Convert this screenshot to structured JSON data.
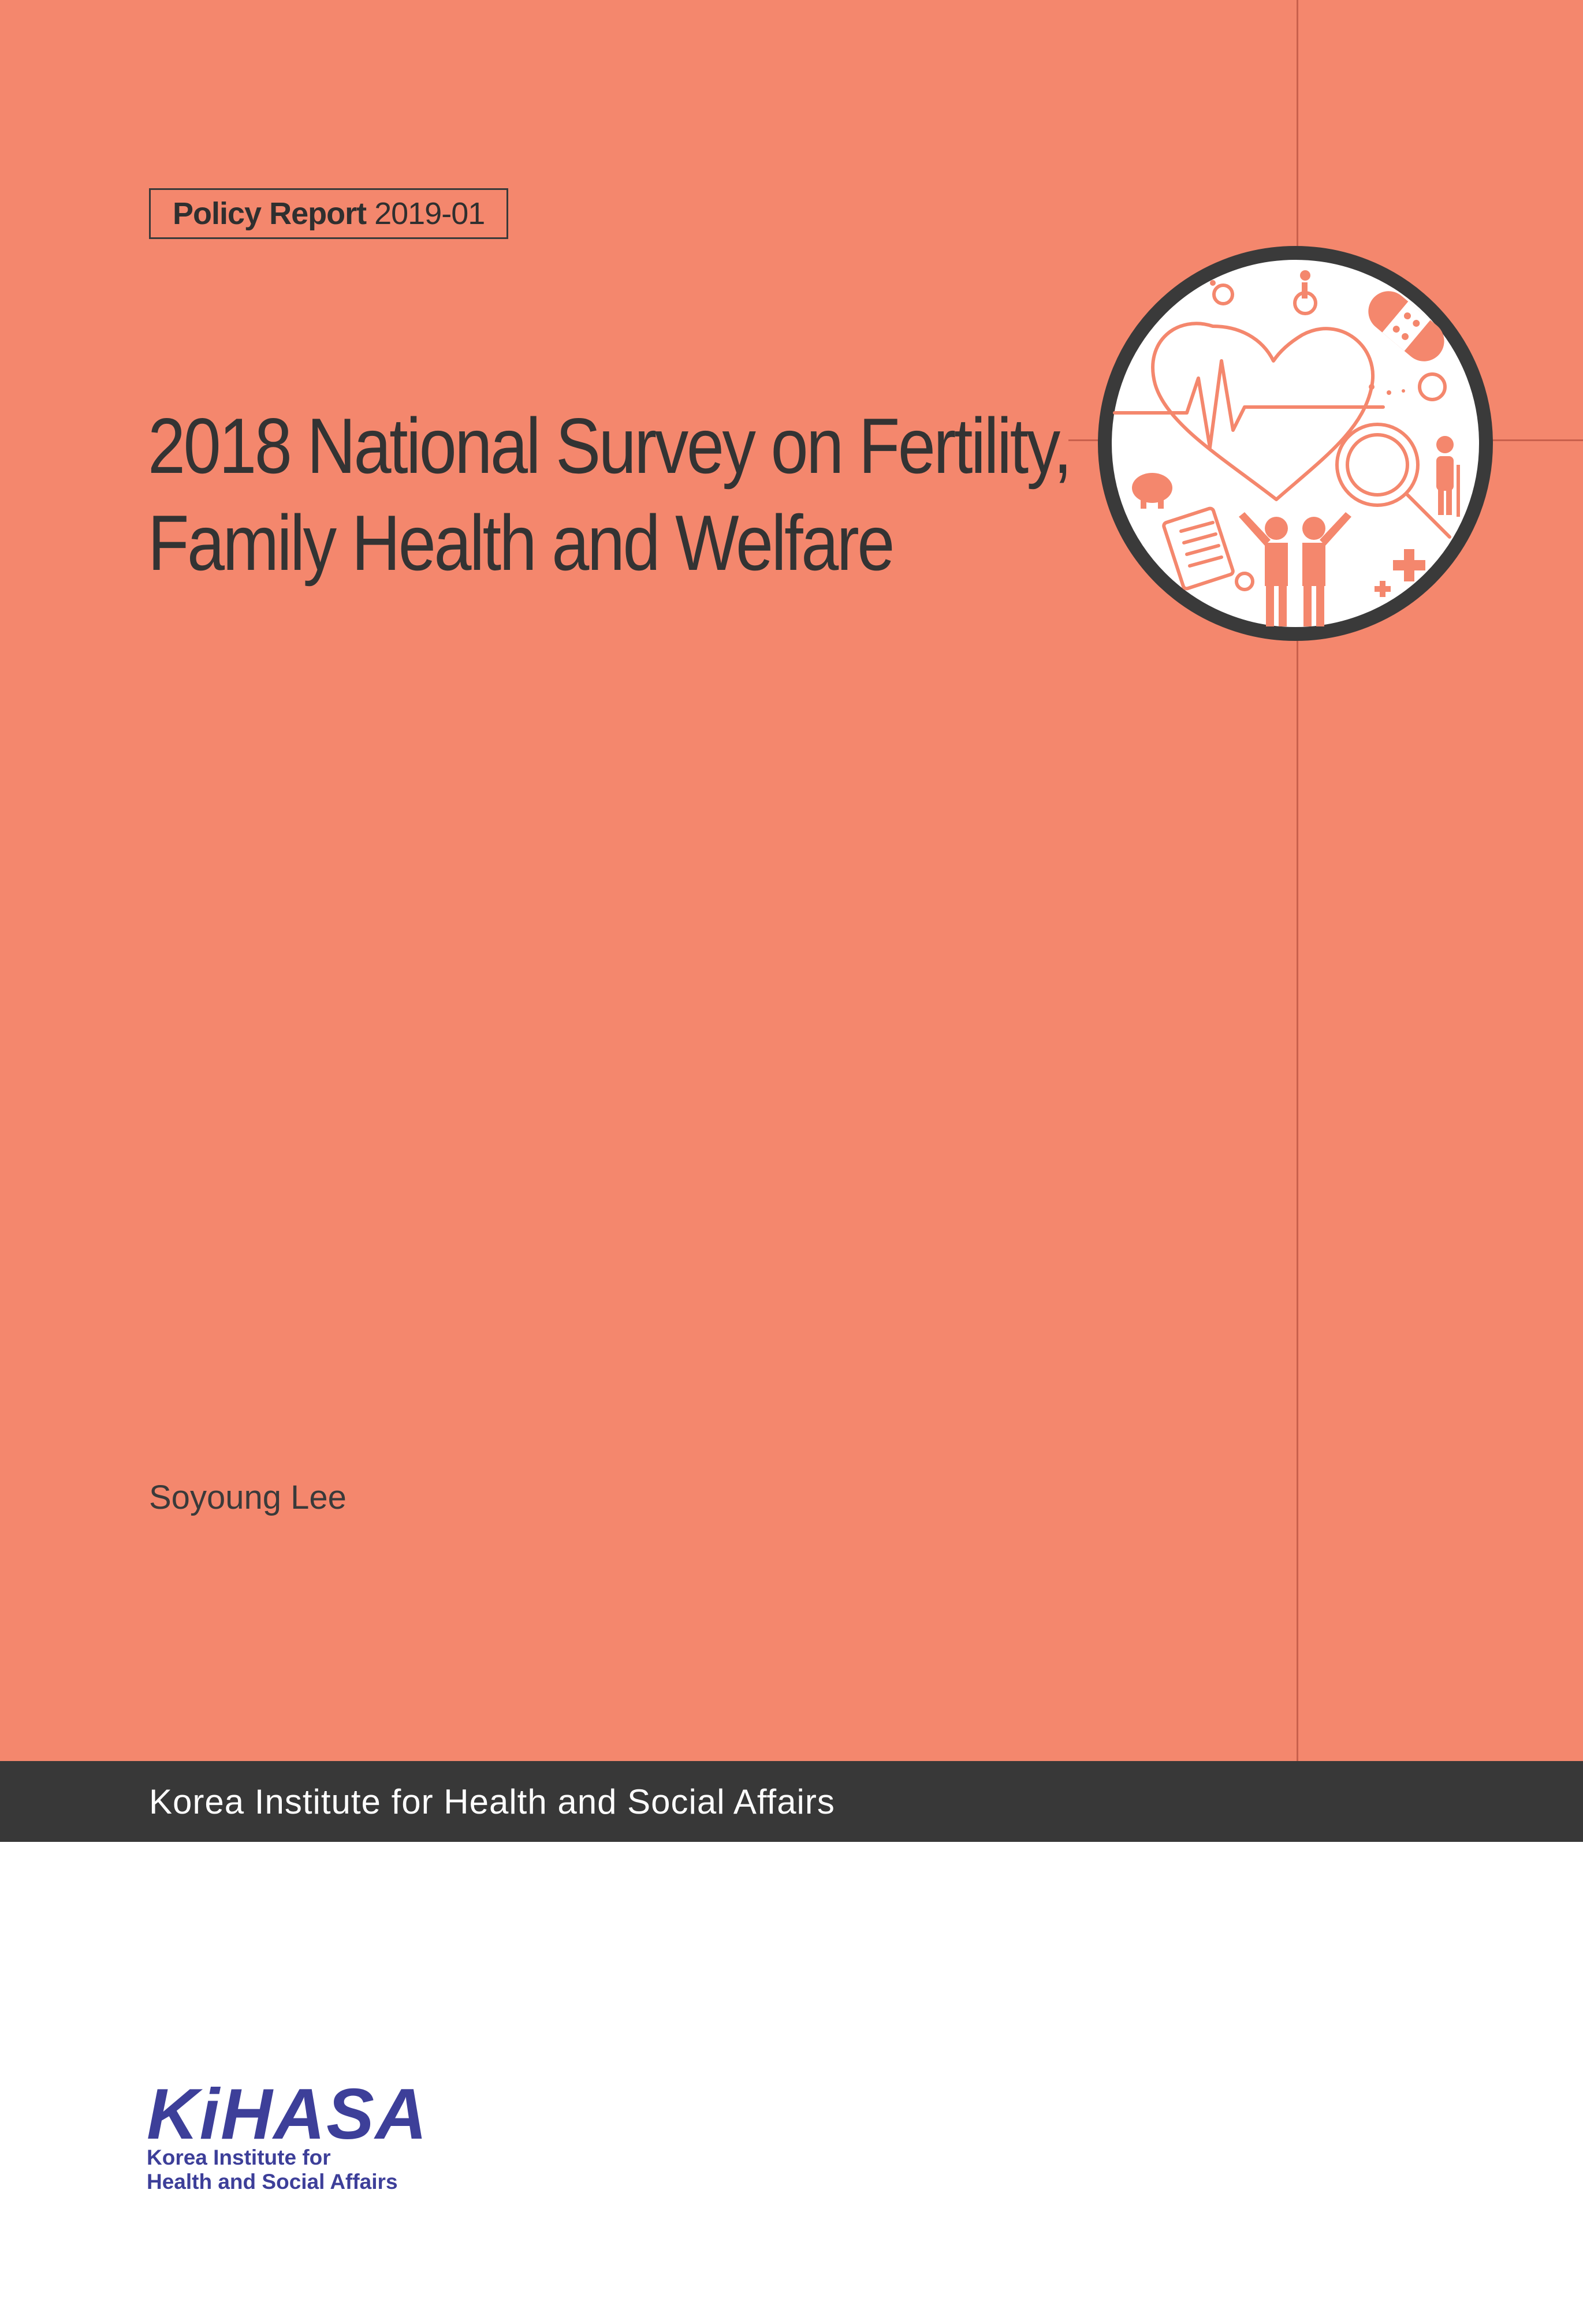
{
  "series": {
    "label": "Policy Report",
    "number": "2019-01"
  },
  "title": {
    "line1": "2018 National Survey on Fertility,",
    "line2": "Family Health and Welfare"
  },
  "author": "Soyoung Lee",
  "publisher_band": "Korea Institute for Health and Social Affairs",
  "logo": {
    "wordmark": "KiHASA",
    "line1": "Korea Institute for",
    "line2": "Health and Social Affairs"
  },
  "colors": {
    "cover": "#f4876d",
    "band": "#383838",
    "logo": "#3d3f99"
  },
  "emblem_icons": [
    "heart-pulse-icon",
    "wheelchair-icon",
    "bandage-icon",
    "magnifier-icon",
    "elderly-person-icon",
    "piggy-bank-icon",
    "clipboard-icon",
    "people-icon",
    "medical-cross-icon"
  ]
}
